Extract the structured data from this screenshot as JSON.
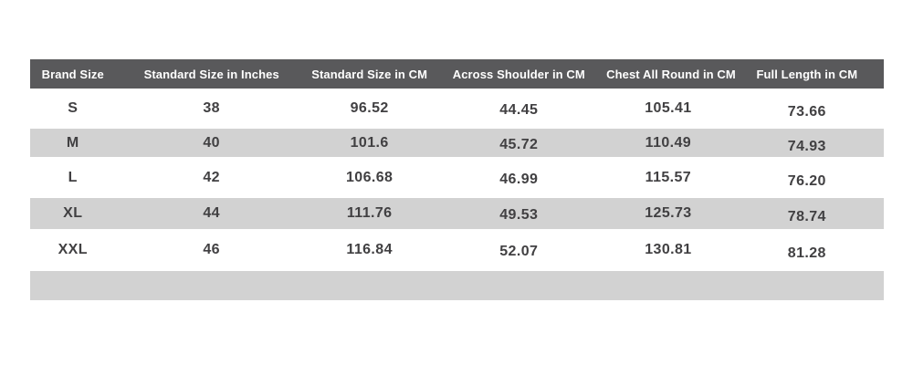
{
  "colors": {
    "page_bg": "#ffffff",
    "header_bg": "#59595b",
    "header_text": "#ffffff",
    "stripe_bg": "#d2d2d2",
    "row_bg": "#ffffff",
    "body_text": "#414042"
  },
  "table": {
    "headers": [
      "Brand Size",
      "Standard Size in Inches",
      "Standard Size in CM",
      "Across Shoulder in CM",
      "Chest All Round in CM",
      "Full Length in CM"
    ],
    "rows": [
      [
        "S",
        "38",
        "96.52",
        "44.45",
        "105.41",
        "73.66"
      ],
      [
        "M",
        "40",
        "101.6",
        "45.72",
        "110.49",
        "74.93"
      ],
      [
        "L",
        "42",
        "106.68",
        "46.99",
        "115.57",
        "76.20"
      ],
      [
        "XL",
        "44",
        "111.76",
        "49.53",
        "125.73",
        "78.74"
      ],
      [
        "XXL",
        "46",
        "116.84",
        "52.07",
        "130.81",
        "81.28"
      ]
    ]
  },
  "chart_data": {
    "type": "table",
    "title": "Garment size chart",
    "columns": [
      "Brand Size",
      "Standard Size in Inches",
      "Standard Size in CM",
      "Across Shoulder in CM",
      "Chest All Round in CM",
      "Full Length in CM"
    ],
    "rows": [
      {
        "brand_size": "S",
        "standard_size_inches": 38,
        "standard_size_cm": 96.52,
        "across_shoulder_cm": 44.45,
        "chest_all_round_cm": 105.41,
        "full_length_cm": 73.66
      },
      {
        "brand_size": "M",
        "standard_size_inches": 40,
        "standard_size_cm": 101.6,
        "across_shoulder_cm": 45.72,
        "chest_all_round_cm": 110.49,
        "full_length_cm": 74.93
      },
      {
        "brand_size": "L",
        "standard_size_inches": 42,
        "standard_size_cm": 106.68,
        "across_shoulder_cm": 46.99,
        "chest_all_round_cm": 115.57,
        "full_length_cm": 76.2
      },
      {
        "brand_size": "XL",
        "standard_size_inches": 44,
        "standard_size_cm": 111.76,
        "across_shoulder_cm": 49.53,
        "chest_all_round_cm": 125.73,
        "full_length_cm": 78.74
      },
      {
        "brand_size": "XXL",
        "standard_size_inches": 46,
        "standard_size_cm": 116.84,
        "across_shoulder_cm": 52.07,
        "chest_all_round_cm": 130.81,
        "full_length_cm": 81.28
      }
    ]
  }
}
